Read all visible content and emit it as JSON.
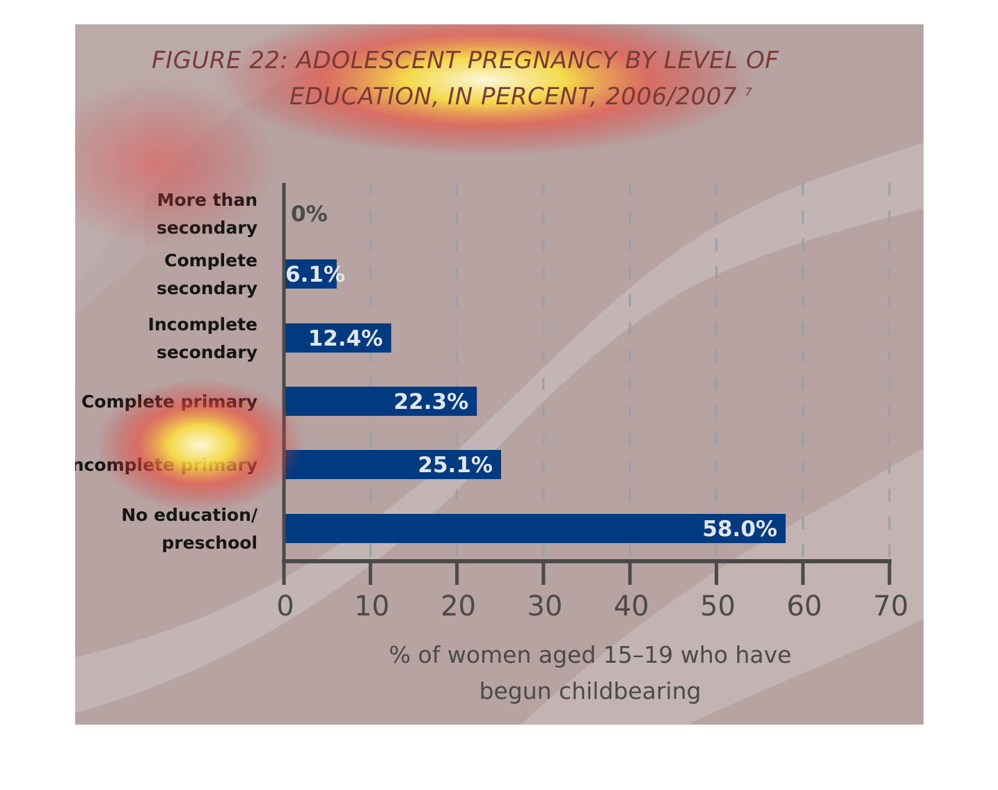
{
  "figure": {
    "title_line1": "FIGURE 22: ADOLESCENT PREGNANCY BY LEVEL OF",
    "title_line2": "EDUCATION, IN PERCENT, 2006/2007",
    "title_footnote": "7"
  },
  "colors": {
    "background": "#b7a3a2",
    "bar": "#003a80",
    "axis": "#4a4a4a",
    "title": "#7a3a36",
    "bar_label_inside": "#e2e6ee",
    "bar_label_outside": "#4a4a4a"
  },
  "chart_data": {
    "type": "bar",
    "orientation": "horizontal",
    "categories": [
      [
        "More than",
        "secondary"
      ],
      [
        "Complete",
        "secondary"
      ],
      [
        "Incomplete",
        "secondary"
      ],
      [
        "Complete primary"
      ],
      [
        "Incomplete primary"
      ],
      [
        "No education/",
        "preschool"
      ]
    ],
    "values": [
      0,
      6.1,
      12.4,
      22.3,
      25.1,
      58.0
    ],
    "data_labels": [
      "0%",
      "6.1%",
      "12.4%",
      "22.3%",
      "25.1%",
      "58.0%"
    ],
    "xticks": [
      "0",
      "10",
      "20",
      "30",
      "40",
      "50",
      "60",
      "70"
    ],
    "xlim": [
      0,
      70
    ],
    "xlabel": [
      "% of women aged 15–19 who have",
      "begun childbearing"
    ],
    "grid": "vertical dashed"
  }
}
